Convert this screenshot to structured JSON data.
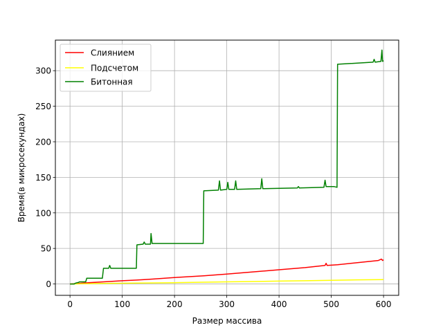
{
  "chart_data": {
    "type": "line",
    "xlabel": "Размер массива",
    "ylabel": "Время(в микросекундах)",
    "xlim": [
      -28,
      629
    ],
    "ylim": [
      -16,
      343
    ],
    "xticks": [
      0,
      100,
      200,
      300,
      400,
      500,
      600
    ],
    "yticks": [
      0,
      50,
      100,
      150,
      200,
      250,
      300
    ],
    "grid": true,
    "legend_position": "top-left",
    "series": [
      {
        "name": "Слиянием",
        "color": "#ff0000",
        "points": [
          [
            0,
            0
          ],
          [
            30,
            1.5
          ],
          [
            64,
            3
          ],
          [
            100,
            4.5
          ],
          [
            128,
            5.5
          ],
          [
            150,
            6.5
          ],
          [
            160,
            7
          ],
          [
            200,
            9
          ],
          [
            256,
            11.5
          ],
          [
            300,
            14
          ],
          [
            350,
            17
          ],
          [
            400,
            20
          ],
          [
            450,
            23
          ],
          [
            488,
            26
          ],
          [
            490,
            29
          ],
          [
            492,
            26
          ],
          [
            512,
            27
          ],
          [
            550,
            30
          ],
          [
            590,
            33
          ],
          [
            596,
            35
          ],
          [
            598,
            33
          ],
          [
            600,
            34
          ]
        ]
      },
      {
        "name": "Подсчетом",
        "color": "#ffff00",
        "points": [
          [
            0,
            0
          ],
          [
            64,
            0.8
          ],
          [
            128,
            1.2
          ],
          [
            200,
            1.8
          ],
          [
            256,
            2.5
          ],
          [
            300,
            3
          ],
          [
            350,
            3.5
          ],
          [
            400,
            4
          ],
          [
            450,
            4.5
          ],
          [
            500,
            5.2
          ],
          [
            550,
            5.8
          ],
          [
            600,
            6.2
          ]
        ]
      },
      {
        "name": "Битонная",
        "color": "#008000",
        "points": [
          [
            0,
            0
          ],
          [
            8,
            0
          ],
          [
            10,
            1
          ],
          [
            15,
            2
          ],
          [
            16,
            2
          ],
          [
            18,
            3
          ],
          [
            30,
            3
          ],
          [
            32,
            8
          ],
          [
            62,
            8
          ],
          [
            64,
            22
          ],
          [
            74,
            22
          ],
          [
            76,
            26
          ],
          [
            78,
            22
          ],
          [
            127,
            22
          ],
          [
            128,
            55
          ],
          [
            140,
            56
          ],
          [
            142,
            59
          ],
          [
            144,
            56
          ],
          [
            154,
            56
          ],
          [
            155,
            71
          ],
          [
            157,
            57
          ],
          [
            255,
            57
          ],
          [
            256,
            131
          ],
          [
            284,
            132
          ],
          [
            286,
            145
          ],
          [
            288,
            132
          ],
          [
            300,
            133
          ],
          [
            302,
            143
          ],
          [
            304,
            133
          ],
          [
            315,
            133
          ],
          [
            317,
            145
          ],
          [
            319,
            133
          ],
          [
            365,
            134
          ],
          [
            367,
            148
          ],
          [
            369,
            134
          ],
          [
            435,
            135
          ],
          [
            437,
            137
          ],
          [
            439,
            135
          ],
          [
            486,
            136
          ],
          [
            488,
            146
          ],
          [
            490,
            137
          ],
          [
            505,
            137
          ],
          [
            511,
            136
          ],
          [
            512,
            309
          ],
          [
            580,
            312
          ],
          [
            582,
            316
          ],
          [
            584,
            312
          ],
          [
            595,
            313
          ],
          [
            597,
            329
          ],
          [
            598,
            313
          ],
          [
            600,
            314
          ]
        ]
      }
    ]
  }
}
